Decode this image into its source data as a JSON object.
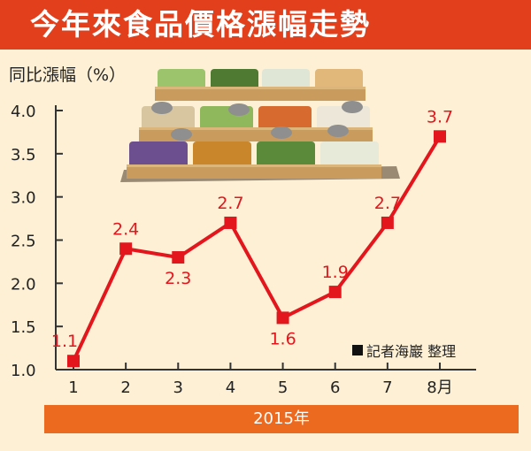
{
  "header": {
    "title": "今年來食品價格漲幅走勢"
  },
  "credit": "記者海巖 整理",
  "year_label": "2015年",
  "colors": {
    "banner": "#e2401c",
    "line": "#e3161d",
    "year_bar": "#ec6a1f",
    "background": "#fdf0d5"
  },
  "illustration": "vegetable-market-crates-image",
  "chart_data": {
    "type": "line",
    "title": "",
    "ylabel": "同比漲幅（%）",
    "xlabel": "",
    "categories": [
      "1",
      "2",
      "3",
      "4",
      "5",
      "6",
      "7",
      "8月"
    ],
    "series": [
      {
        "values": [
          1.1,
          2.4,
          2.3,
          2.7,
          1.6,
          1.9,
          2.7,
          3.7
        ]
      }
    ],
    "data_labels": [
      "1.1",
      "2.4",
      "2.3",
      "2.7",
      "1.6",
      "1.9",
      "2.7",
      "3.7"
    ],
    "yticks": [
      "1.0",
      "1.5",
      "2.0",
      "2.5",
      "3.0",
      "3.5",
      "4.0"
    ],
    "ylim": [
      1.0,
      4.0
    ],
    "grid": false
  }
}
